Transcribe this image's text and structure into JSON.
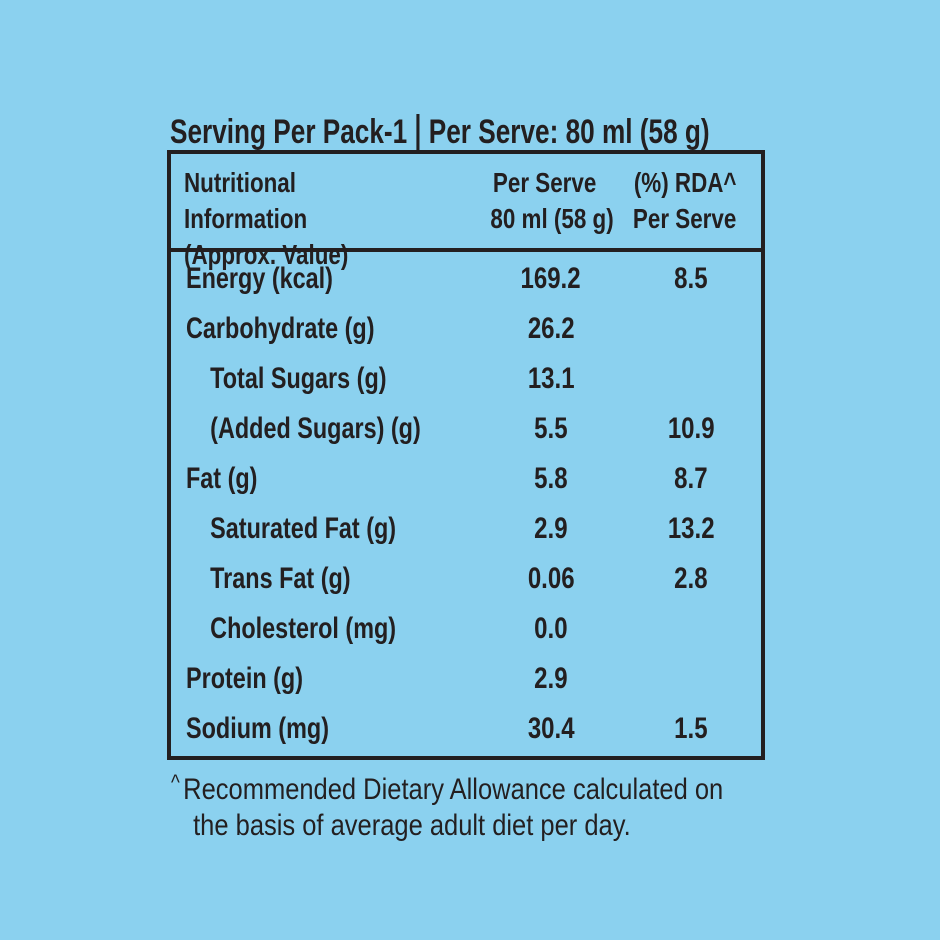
{
  "colors": {
    "background": "#8bd1ef",
    "ink": "#231f20"
  },
  "title": {
    "left": "Serving Per Pack-1",
    "right": "Per Serve: 80 ml (58 g)"
  },
  "table": {
    "header": {
      "col1_line1": "Nutritional Information",
      "col1_line2": "(Approx. Value)",
      "col2_line1": "Per Serve",
      "col2_line2": "80 ml (58 g)",
      "col3_line1": "(%) RDA^",
      "col3_line2": "Per Serve"
    },
    "rows": [
      {
        "label": "Energy (kcal)",
        "value": "169.2",
        "rda": "8.5",
        "indent": false
      },
      {
        "label": "Carbohydrate (g)",
        "value": "26.2",
        "rda": "",
        "indent": false
      },
      {
        "label": "Total Sugars (g)",
        "value": "13.1",
        "rda": "",
        "indent": true
      },
      {
        "label": "(Added Sugars) (g)",
        "value": "5.5",
        "rda": "10.9",
        "indent": true
      },
      {
        "label": "Fat (g)",
        "value": "5.8",
        "rda": "8.7",
        "indent": false
      },
      {
        "label": "Saturated Fat (g)",
        "value": "2.9",
        "rda": "13.2",
        "indent": true
      },
      {
        "label": "Trans Fat (g)",
        "value": "0.06",
        "rda": "2.8",
        "indent": true
      },
      {
        "label": "Cholesterol (mg)",
        "value": "0.0",
        "rda": "",
        "indent": true
      },
      {
        "label": "Protein (g)",
        "value": "2.9",
        "rda": "",
        "indent": false
      },
      {
        "label": "Sodium (mg)",
        "value": "30.4",
        "rda": "1.5",
        "indent": false
      }
    ]
  },
  "footnote": {
    "marker": "^",
    "line1": "Recommended Dietary Allowance calculated on",
    "line2": "the basis of average adult diet per day."
  }
}
